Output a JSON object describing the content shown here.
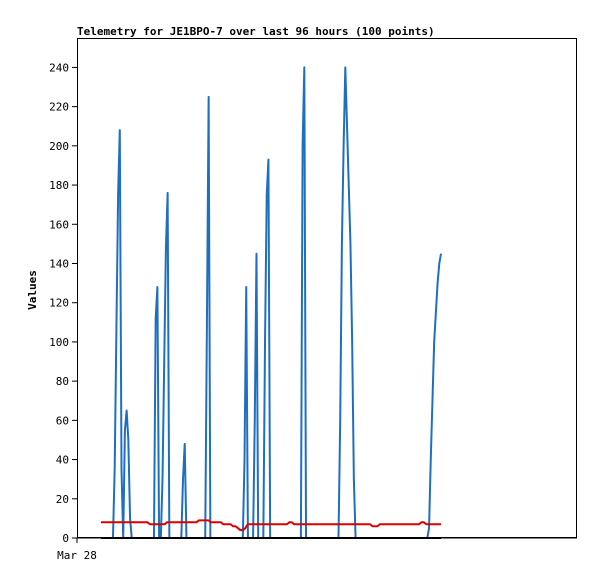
{
  "chart_data": {
    "type": "line",
    "title": "Telemetry for JE1BPO-7 over last 96 hours (100 points)",
    "xlabel": "",
    "ylabel": "Values",
    "ylim": [
      0,
      255
    ],
    "yticks": [
      0,
      20,
      40,
      60,
      80,
      100,
      120,
      140,
      160,
      180,
      200,
      220,
      240
    ],
    "x_tick_labels": [
      "Mar 28"
    ],
    "grid": false,
    "legend": "none",
    "colors": {
      "blue": "#1f6fbf",
      "red": "#dd0000",
      "black": "#000000"
    },
    "series": [
      {
        "color": "#1f6fbf",
        "values": [
          0,
          0,
          0,
          0,
          0,
          0,
          0,
          0,
          35,
          105,
          175,
          208,
          35,
          0,
          55,
          65,
          50,
          10,
          0,
          0,
          0,
          0,
          0,
          0,
          0,
          0,
          0,
          0,
          0,
          0,
          0,
          0,
          112,
          128,
          0,
          0,
          30,
          90,
          148,
          176,
          0,
          0,
          0,
          0,
          0,
          0,
          0,
          0,
          30,
          48,
          0,
          0,
          0,
          0,
          0,
          0,
          0,
          0,
          0,
          0,
          0,
          0,
          110,
          225,
          0,
          0,
          0,
          0,
          0,
          0,
          0,
          0,
          0,
          0,
          0,
          0,
          0,
          0,
          0,
          0,
          0,
          0,
          0,
          0,
          40,
          128,
          0,
          0,
          0,
          0,
          60,
          145,
          0,
          0,
          0,
          0,
          100,
          175,
          193,
          0,
          0,
          0,
          0,
          0,
          0,
          0,
          0,
          0,
          0,
          0,
          0,
          0,
          0,
          0,
          0,
          0,
          0,
          0,
          200,
          240,
          0,
          0,
          0,
          0,
          0,
          0,
          0,
          0,
          0,
          0,
          0,
          0,
          0,
          0,
          0,
          0,
          0,
          0,
          0,
          0,
          60,
          150,
          200,
          240,
          210,
          180,
          150,
          100,
          30,
          0,
          0,
          0,
          0,
          0,
          0,
          0,
          0,
          0,
          0,
          0,
          0,
          0,
          0,
          0,
          0,
          0,
          0,
          0,
          0,
          0,
          0,
          0,
          0,
          0,
          0,
          0,
          0,
          0,
          0,
          0,
          0,
          0,
          0,
          0,
          0,
          0,
          0,
          0,
          0,
          0,
          0,
          0,
          5,
          40,
          70,
          100,
          115,
          130,
          140,
          145
        ]
      },
      {
        "color": "#dd0000",
        "values": [
          8,
          8,
          8,
          8,
          8,
          8,
          8,
          8,
          8,
          8,
          8,
          8,
          8,
          8,
          8,
          8,
          8,
          8,
          8,
          8,
          7,
          7,
          7,
          7,
          7,
          7,
          7,
          8,
          8,
          8,
          8,
          8,
          8,
          8,
          8,
          8,
          8,
          8,
          8,
          8,
          9,
          9,
          9,
          9,
          9,
          8,
          8,
          8,
          8,
          8,
          7,
          7,
          7,
          7,
          6,
          6,
          5,
          4,
          4,
          5,
          7,
          7,
          7,
          7,
          7,
          7,
          7,
          7,
          7,
          7,
          7,
          7,
          7,
          7,
          7,
          7,
          7,
          8,
          8,
          7,
          7,
          7,
          7,
          7,
          7,
          7,
          7,
          7,
          7,
          7,
          7,
          7,
          7,
          7,
          7,
          7,
          7,
          7,
          7,
          7,
          7,
          7,
          7,
          7,
          7,
          7,
          7,
          7,
          7,
          7,
          7,
          6,
          6,
          6,
          7,
          7,
          7,
          7,
          7,
          7,
          7,
          7,
          7,
          7,
          7,
          7,
          7,
          7,
          7,
          7,
          7,
          8,
          8,
          7,
          7,
          7,
          7,
          7,
          7,
          7
        ]
      },
      {
        "color": "#000000",
        "values": [
          0,
          0
        ]
      }
    ]
  }
}
